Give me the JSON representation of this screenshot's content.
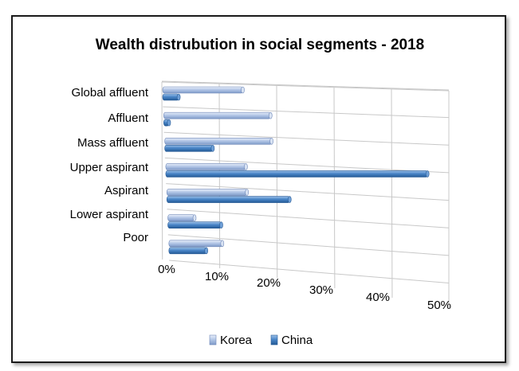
{
  "chart_data": {
    "type": "bar",
    "orientation": "horizontal",
    "title": "Wealth distrubution in social segments - 2018",
    "categories": [
      "Global affluent",
      "Affluent",
      "Mass affluent",
      "Upper aspirant",
      "Aspirant",
      "Lower aspirant",
      "Poor"
    ],
    "series": [
      {
        "name": "Korea",
        "values": [
          15,
          20,
          20,
          15,
          15,
          5,
          10
        ],
        "color": "#b4c7e7"
      },
      {
        "name": "China",
        "values": [
          3,
          1,
          9,
          49,
          23,
          10,
          7
        ],
        "color": "#4a86c8"
      }
    ],
    "x_ticks": [
      "0%",
      "10%",
      "20%",
      "30%",
      "40%",
      "50%"
    ],
    "xlim": [
      0,
      50
    ],
    "grid": true,
    "legend_position": "bottom",
    "style": "3d-cylinder"
  }
}
